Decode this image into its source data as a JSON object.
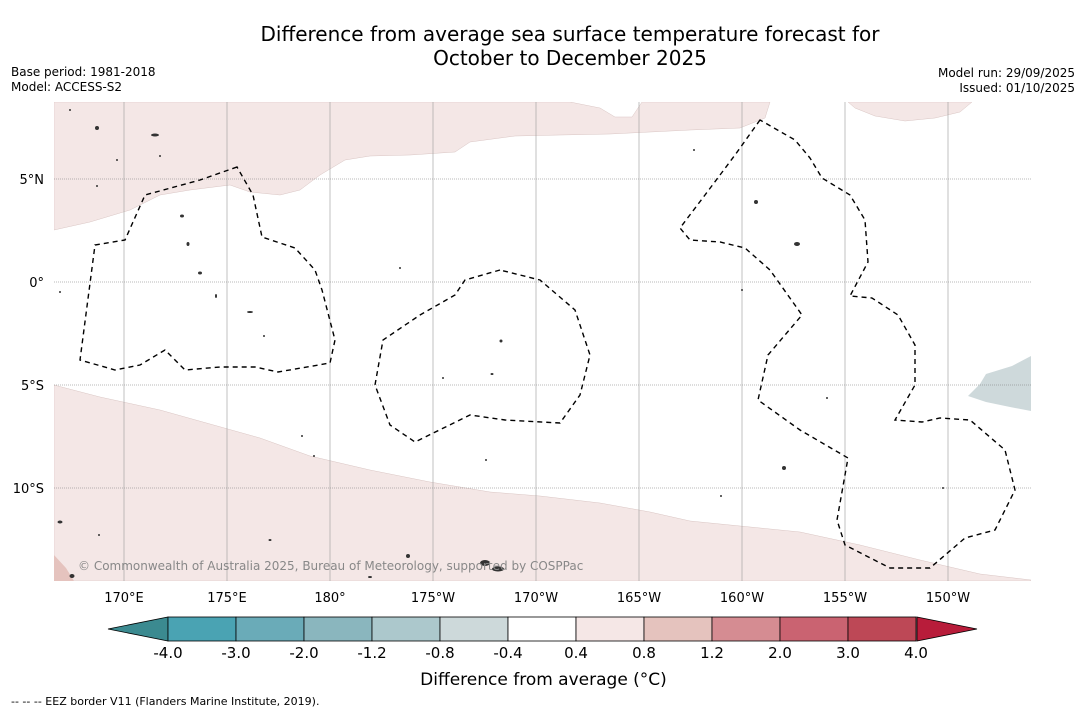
{
  "title": {
    "line1": "Difference from average sea surface temperature forecast for",
    "line2": "October to December 2025"
  },
  "meta": {
    "base_period": "Base period: 1981-2018",
    "model": "Model: ACCESS-S2",
    "model_run": "Model run: 29/09/2025",
    "issued": "Issued: 01/10/2025"
  },
  "map": {
    "lat_labels": [
      "5°N",
      "0°",
      "5°S",
      "10°S"
    ],
    "lon_labels": [
      "170°E",
      "175°E",
      "180°",
      "175°W",
      "170°W",
      "165°W",
      "160°W",
      "155°W",
      "150°W"
    ],
    "copyright": "© Commonwealth of Australia 2025, Bureau of Meteorology, supported by COSPPac",
    "land_color": "#ffffff",
    "warm_color": "#f4e7e6",
    "cool_color": "#ced9db"
  },
  "colorbar": {
    "title": "Difference from average (°C)",
    "ticks": [
      "-4.0",
      "-3.0",
      "-2.0",
      "-1.2",
      "-0.8",
      "-0.4",
      "0.4",
      "0.8",
      "1.2",
      "2.0",
      "3.0",
      "4.0"
    ],
    "colors": [
      "#4aa3b3",
      "#6aabb8",
      "#8ab6be",
      "#acc8cc",
      "#cdd9da",
      "#ffffff",
      "#f5e7e6",
      "#e5c3be",
      "#d58c92",
      "#ca6371",
      "#bd4856"
    ],
    "under_color": "#3b8a90",
    "over_color": "#b81c3a"
  },
  "footer": {
    "legend": "-- -- -- EEZ border V11 (Flanders Marine Institute, 2019)."
  }
}
